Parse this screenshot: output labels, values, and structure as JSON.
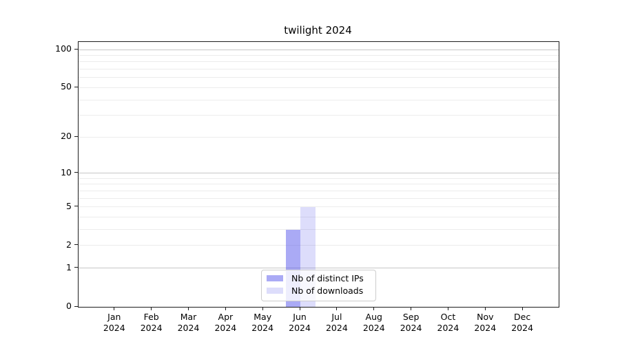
{
  "chart_data": {
    "type": "bar",
    "title": "twilight 2024",
    "categories": [
      "Jan",
      "Feb",
      "Mar",
      "Apr",
      "May",
      "Jun",
      "Jul",
      "Aug",
      "Sep",
      "Oct",
      "Nov",
      "Dec"
    ],
    "category_year": "2024",
    "series": [
      {
        "name": "Nb of distinct IPs",
        "color": "rgba(85,85,235,0.5)",
        "values": [
          0,
          0,
          0,
          0,
          0,
          3,
          0,
          0,
          0,
          0,
          0,
          0
        ]
      },
      {
        "name": "Nb of downloads",
        "color": "rgba(85,85,235,0.2)",
        "values": [
          0,
          0,
          0,
          0,
          0,
          5,
          0,
          0,
          0,
          0,
          0,
          0
        ]
      }
    ],
    "yscale": "log1p",
    "ylim": [
      0,
      100
    ],
    "yticks": [
      0,
      1,
      2,
      5,
      10,
      20,
      50,
      100
    ],
    "ytick_labels": [
      "0",
      "1",
      "2",
      "5",
      "10",
      "20",
      "50",
      "100"
    ],
    "y_major_gridlines": [
      1,
      10,
      100
    ],
    "y_minor_gridlines": [
      2,
      3,
      4,
      5,
      6,
      7,
      8,
      9,
      20,
      30,
      40,
      50,
      60,
      70,
      80,
      90
    ],
    "legend_position": "lower center",
    "colors": {
      "grid_major": "#c6c6c6",
      "grid_minor": "#ececec",
      "axis": "#1c1c1c",
      "text": "#000000"
    }
  }
}
